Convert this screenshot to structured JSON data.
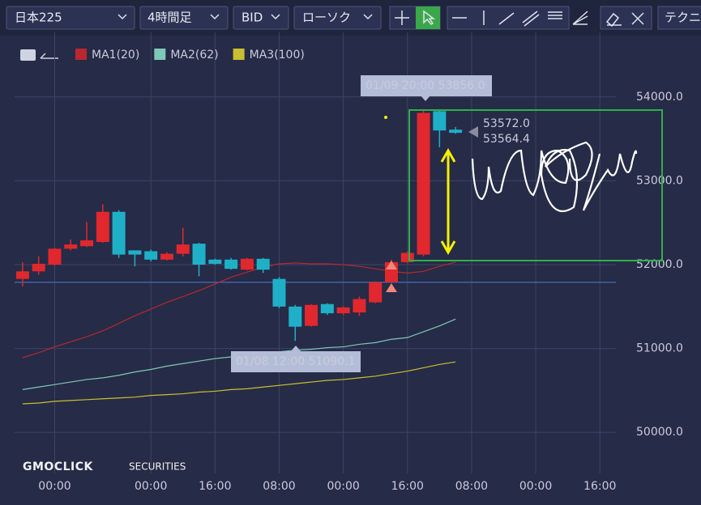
{
  "toolbar": {
    "symbol": "日本225",
    "timeframe": "4時間足",
    "side": "BID",
    "chart_style": "ローソク",
    "indicator": "テクニ"
  },
  "logo": "GMOCLICK",
  "logo_sub": "SECURITIES",
  "chart_data": {
    "type": "candlestick",
    "up_color": "#e0282e",
    "down_color": "#1fb0c8",
    "open": [
      51830,
      51920,
      52000,
      52190,
      52220,
      52270,
      52630,
      52170,
      52160,
      52060,
      52130,
      52250,
      52060,
      52060,
      51940,
      52070,
      51830,
      51500,
      51270,
      51530,
      51420,
      51430,
      51550,
      51790,
      52030,
      52120,
      53830,
      53610
    ],
    "high": [
      52030,
      52100,
      52200,
      52300,
      52510,
      52720,
      52650,
      52170,
      52180,
      52150,
      52440,
      52260,
      52070,
      52080,
      52080,
      52080,
      51850,
      51520,
      51530,
      51540,
      51500,
      51620,
      51800,
      52060,
      52160,
      53856,
      53850,
      53640
    ],
    "low": [
      51740,
      51880,
      51990,
      52170,
      52210,
      52260,
      52080,
      51980,
      52040,
      52050,
      52100,
      51860,
      52000,
      51940,
      51930,
      51900,
      51480,
      51090,
      51260,
      51400,
      51400,
      51390,
      51540,
      51790,
      52020,
      52100,
      53400,
      53560
    ],
    "close": [
      51920,
      52010,
      52190,
      52240,
      52290,
      52630,
      52120,
      52120,
      52060,
      52130,
      52240,
      52000,
      52010,
      51950,
      52070,
      51940,
      51500,
      51260,
      51520,
      51420,
      51490,
      51590,
      51790,
      52030,
      52140,
      53810,
      53600,
      53572
    ],
    "series": [
      {
        "name": "MA1(20)",
        "color": "#b8282e",
        "values": [
          50890,
          50950,
          51020,
          51080,
          51140,
          51210,
          51300,
          51390,
          51470,
          51550,
          51620,
          51690,
          51770,
          51850,
          51910,
          51970,
          52010,
          52020,
          52010,
          52010,
          52000,
          51980,
          51950,
          51920,
          51900,
          51920,
          51980,
          52030
        ]
      },
      {
        "name": "MA2(62)",
        "color": "#7fc8b8",
        "values": [
          50510,
          50540,
          50570,
          50600,
          50630,
          50650,
          50680,
          50720,
          50750,
          50790,
          50820,
          50850,
          50880,
          50900,
          50920,
          50940,
          50960,
          50980,
          50990,
          51010,
          51020,
          51050,
          51070,
          51110,
          51130,
          51200,
          51270,
          51350
        ]
      },
      {
        "name": "MA3(100)",
        "color": "#c8c030",
        "values": [
          50340,
          50350,
          50370,
          50380,
          50390,
          50400,
          50410,
          50420,
          50440,
          50450,
          50460,
          50480,
          50490,
          50510,
          50520,
          50540,
          50560,
          50580,
          50600,
          50620,
          50630,
          50650,
          50670,
          50700,
          50730,
          50770,
          50810,
          50840
        ]
      }
    ],
    "hline": 51790,
    "xlim": [
      -0.5,
      37
    ],
    "xticks": [
      {
        "value": 2,
        "label": "00:00"
      },
      {
        "value": 8,
        "label": "00:00"
      },
      {
        "value": 12,
        "label": "16:00"
      },
      {
        "value": 16,
        "label": "08:00"
      },
      {
        "value": 20,
        "label": "00:00"
      },
      {
        "value": 24,
        "label": "16:00"
      },
      {
        "value": 28,
        "label": "08:00"
      },
      {
        "value": 32,
        "label": "00:00"
      },
      {
        "value": 36,
        "label": "16:00"
      }
    ],
    "ylim": [
      49510,
      54770
    ],
    "yticks": [
      {
        "value": 50000,
        "label": "50000.0"
      },
      {
        "value": 51000,
        "label": "51000.0"
      },
      {
        "value": 52000,
        "label": "52000.0"
      },
      {
        "value": 53000,
        "label": "53000.0"
      },
      {
        "value": 54000,
        "label": "54000.0"
      }
    ],
    "grid": true,
    "annotations": [
      "01/09 20:00 53856.0",
      "01/08 12:00 51090.1",
      "53572.0",
      "53564.4"
    ]
  }
}
